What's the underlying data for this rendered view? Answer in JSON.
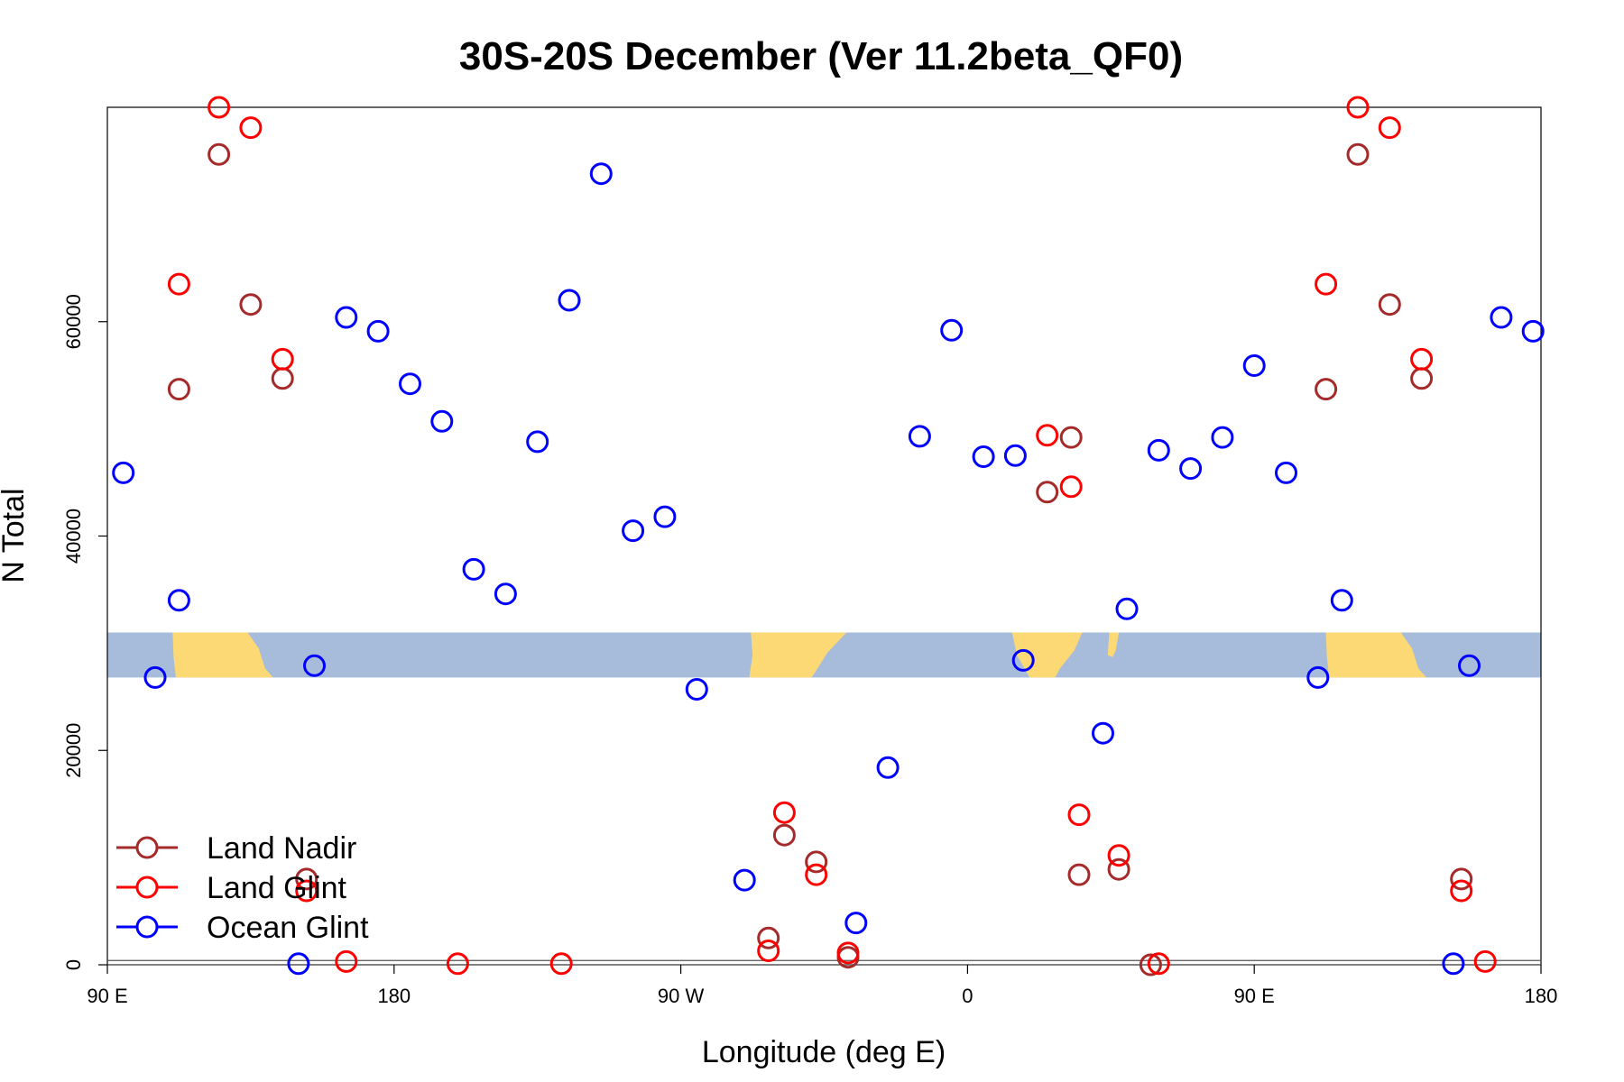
{
  "chart_data": {
    "type": "scatter",
    "title": "30S-20S December (Ver 11.2beta_QF0)",
    "xlabel": "Longitude (deg E)",
    "ylabel": "N Total",
    "xlim": [
      90,
      540
    ],
    "ylim": [
      0,
      80000
    ],
    "x_ticks": [
      {
        "value": 90,
        "label": "90 E"
      },
      {
        "value": 180,
        "label": "180"
      },
      {
        "value": 270,
        "label": "90 W"
      },
      {
        "value": 360,
        "label": "0"
      },
      {
        "value": 450,
        "label": "90 E"
      },
      {
        "value": 540,
        "label": "180"
      }
    ],
    "y_ticks": [
      {
        "value": 0,
        "label": "0"
      },
      {
        "value": 20000,
        "label": "20000"
      },
      {
        "value": 40000,
        "label": "40000"
      },
      {
        "value": 60000,
        "label": "60000"
      }
    ],
    "map_strip": {
      "latitude_range": "30S-20S",
      "y_range": [
        26800,
        31000
      ]
    },
    "legend": {
      "position": "bottom-left",
      "entries": [
        {
          "name": "Land Nadir",
          "color": "#a52a2a"
        },
        {
          "name": "Land Glint",
          "color": "#ff0000"
        },
        {
          "name": "Ocean Glint",
          "color": "#0000ff"
        }
      ]
    },
    "series": [
      {
        "name": "Land Nadir",
        "color": "#a52a2a",
        "points": [
          [
            125,
            75600
          ],
          [
            135,
            61600
          ],
          [
            112.5,
            53700
          ],
          [
            145,
            54700
          ],
          [
            152.5,
            8000
          ],
          [
            297.5,
            2500
          ],
          [
            302.5,
            12100
          ],
          [
            312.5,
            9600
          ],
          [
            322.5,
            700
          ],
          [
            385,
            44100
          ],
          [
            392.5,
            49200
          ],
          [
            395,
            8400
          ],
          [
            407.5,
            8900
          ],
          [
            417.5,
            0
          ],
          [
            482.5,
            75600
          ],
          [
            492.5,
            61600
          ],
          [
            472.5,
            53700
          ],
          [
            502.5,
            54700
          ],
          [
            515,
            8000
          ]
        ]
      },
      {
        "name": "Land Glint",
        "color": "#ff0000",
        "points": [
          [
            125,
            80000
          ],
          [
            135,
            78100
          ],
          [
            112.5,
            63500
          ],
          [
            145,
            56500
          ],
          [
            152.5,
            6900
          ],
          [
            165,
            300
          ],
          [
            200,
            100
          ],
          [
            232.5,
            100
          ],
          [
            297.5,
            1300
          ],
          [
            302.5,
            14200
          ],
          [
            312.5,
            8400
          ],
          [
            322.5,
            1100
          ],
          [
            385,
            49400
          ],
          [
            392.5,
            44600
          ],
          [
            395,
            14000
          ],
          [
            407.5,
            10200
          ],
          [
            420,
            100
          ],
          [
            482.5,
            80000
          ],
          [
            492.5,
            78100
          ],
          [
            472.5,
            63500
          ],
          [
            502.5,
            56500
          ],
          [
            515,
            6900
          ],
          [
            522.5,
            300
          ]
        ]
      },
      {
        "name": "Ocean Glint",
        "color": "#0000ff",
        "points": [
          [
            95,
            45900
          ],
          [
            105,
            26800
          ],
          [
            112.5,
            34000
          ],
          [
            150,
            100
          ],
          [
            155,
            27900
          ],
          [
            165,
            60400
          ],
          [
            175,
            59100
          ],
          [
            185,
            54200
          ],
          [
            195,
            50700
          ],
          [
            205,
            36900
          ],
          [
            215,
            34600
          ],
          [
            225,
            48800
          ],
          [
            235,
            62000
          ],
          [
            245,
            73800
          ],
          [
            255,
            40500
          ],
          [
            265,
            41800
          ],
          [
            275,
            25700
          ],
          [
            290,
            7900
          ],
          [
            325,
            3900
          ],
          [
            335,
            18400
          ],
          [
            345,
            49300
          ],
          [
            355,
            59200
          ],
          [
            365,
            47400
          ],
          [
            375,
            47500
          ],
          [
            377.5,
            28400
          ],
          [
            402.5,
            21600
          ],
          [
            410,
            33200
          ],
          [
            420,
            48000
          ],
          [
            430,
            46300
          ],
          [
            440,
            49200
          ],
          [
            450,
            55900
          ],
          [
            460,
            45900
          ],
          [
            470,
            26800
          ],
          [
            477.5,
            34000
          ],
          [
            512.5,
            100
          ],
          [
            517.5,
            27900
          ],
          [
            527.5,
            60400
          ],
          [
            537.5,
            59100
          ]
        ]
      }
    ]
  }
}
